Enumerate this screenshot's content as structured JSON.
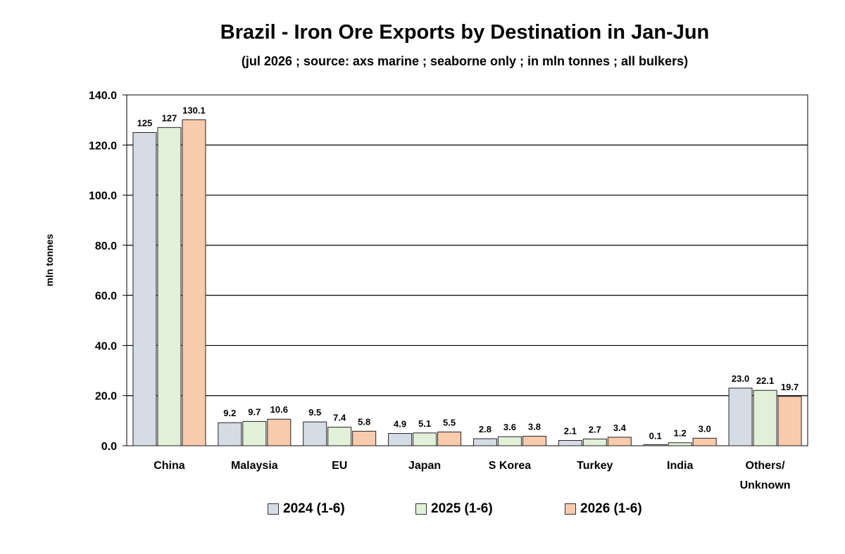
{
  "chart_data": {
    "type": "bar",
    "title": "Brazil - Iron Ore Exports by Destination in Jan-Jun",
    "subtitle": "(jul 2026 ; source: axs marine ; seaborne only ; in mln tonnes ; all bulkers)",
    "ylabel": "mln tonnes",
    "xlabel": "",
    "ylim": [
      0,
      140
    ],
    "yticks": [
      "0.0",
      "20.0",
      "40.0",
      "60.0",
      "80.0",
      "100.0",
      "120.0",
      "140.0"
    ],
    "grid": true,
    "legend_position": "bottom",
    "categories": [
      "China",
      "Malaysia",
      "EU",
      "Japan",
      "S Korea",
      "Turkey",
      "India",
      "Others/\nUnknown"
    ],
    "series": [
      {
        "name": "2024 (1-6)",
        "color": "#d6dce5",
        "values": [
          125,
          9.2,
          9.5,
          4.9,
          2.8,
          2.1,
          0.1,
          23.0
        ],
        "labels": [
          "125",
          "9.2",
          "9.5",
          "4.9",
          "2.8",
          "2.1",
          "0.1",
          "23.0"
        ]
      },
      {
        "name": "2025 (1-6)",
        "color": "#e2f0d9",
        "values": [
          127,
          9.7,
          7.4,
          5.1,
          3.6,
          2.7,
          1.2,
          22.1
        ],
        "labels": [
          "127",
          "9.7",
          "7.4",
          "5.1",
          "3.6",
          "2.7",
          "1.2",
          "22.1"
        ]
      },
      {
        "name": "2026 (1-6)",
        "color": "#f8cbad",
        "values": [
          130.1,
          10.6,
          5.8,
          5.5,
          3.8,
          3.4,
          3.0,
          19.7
        ],
        "labels": [
          "130.1",
          "10.6",
          "5.8",
          "5.5",
          "3.8",
          "3.4",
          "3.0",
          "19.7"
        ]
      }
    ]
  }
}
